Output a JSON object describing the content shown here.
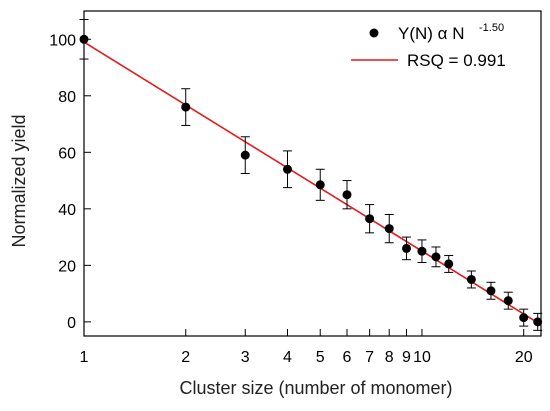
{
  "chart_data": {
    "type": "scatter",
    "xscale": "log",
    "xlabel": "Cluster size (number of monomer)",
    "ylabel": "Normalized yield",
    "xlim": [
      1,
      22.5
    ],
    "ylim": [
      -5,
      110
    ],
    "yticks": [
      0,
      20,
      40,
      60,
      80,
      100
    ],
    "xticks": [
      1,
      2,
      3,
      4,
      5,
      6,
      7,
      8,
      9,
      10,
      20
    ],
    "xtick_labels": [
      "1",
      "2",
      "3",
      "4",
      "5",
      "6",
      "7",
      "8",
      "9",
      "10",
      "20"
    ],
    "grid": false,
    "legend_position": "top-right",
    "series": [
      {
        "kind": "points",
        "label_main": "Y(N) α N",
        "label_sup": "-1.50",
        "color": "#000000",
        "points": [
          {
            "x": 1,
            "y": 100,
            "err": 7
          },
          {
            "x": 2,
            "y": 76,
            "err": 6.5
          },
          {
            "x": 3,
            "y": 59,
            "err": 6.5
          },
          {
            "x": 4,
            "y": 54,
            "err": 6.5
          },
          {
            "x": 5,
            "y": 48.5,
            "err": 5.5
          },
          {
            "x": 6,
            "y": 45,
            "err": 5
          },
          {
            "x": 7,
            "y": 36.5,
            "err": 5
          },
          {
            "x": 8,
            "y": 33,
            "err": 5
          },
          {
            "x": 9,
            "y": 26,
            "err": 4
          },
          {
            "x": 10,
            "y": 25,
            "err": 4
          },
          {
            "x": 11,
            "y": 23,
            "err": 3.5
          },
          {
            "x": 12,
            "y": 20.5,
            "err": 3
          },
          {
            "x": 14,
            "y": 15,
            "err": 3
          },
          {
            "x": 16,
            "y": 11,
            "err": 3
          },
          {
            "x": 18,
            "y": 7.5,
            "err": 3
          },
          {
            "x": 20,
            "y": 1.5,
            "err": 3
          },
          {
            "x": 22,
            "y": 0,
            "err": 3
          }
        ]
      },
      {
        "kind": "line",
        "label": "RSQ = 0.991",
        "color": "#e41a1c",
        "x": [
          1,
          22.5
        ],
        "y": [
          99,
          -1
        ]
      }
    ]
  }
}
